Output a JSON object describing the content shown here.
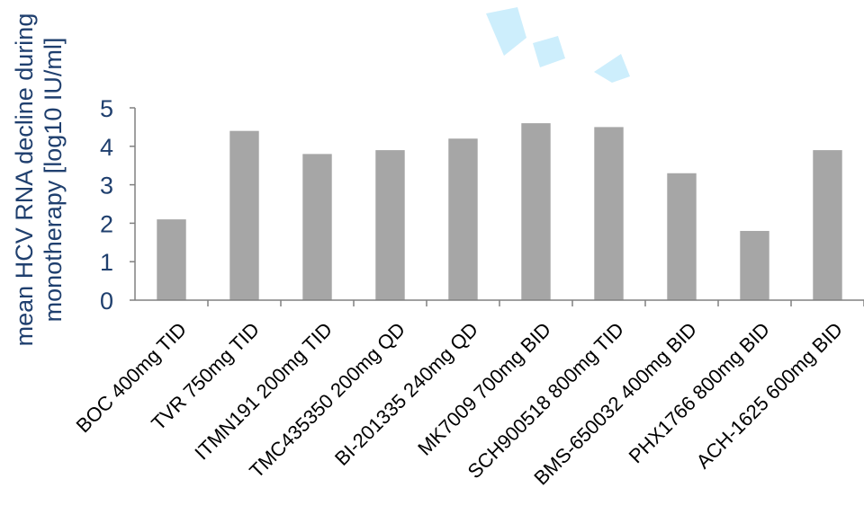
{
  "chart_data": {
    "type": "bar",
    "title": "",
    "xlabel": "",
    "ylabel_lines": [
      "mean HCV RNA decline during",
      "monotherapy [log10 IU/ml]"
    ],
    "ylim": [
      0,
      5
    ],
    "yticks": [
      0,
      1,
      2,
      3,
      4,
      5
    ],
    "categories": [
      "BOC 400mg TID",
      "TVR 750mg TID",
      "ITMN191 200mg TID",
      "TMC435350 200mg QD",
      "BI-201335 240mg QD",
      "MK7009 700mg BID",
      "SCH900518 800mg TID",
      "BMS-650032 400mg BID",
      "PHX1766 800mg BID",
      "ACH-1625 600mg BID"
    ],
    "values": [
      2.1,
      4.4,
      3.8,
      3.9,
      4.2,
      4.6,
      4.5,
      3.3,
      1.8,
      3.9
    ],
    "grid": false,
    "colors": {
      "bar": "#a6a6a6",
      "axis_text": "#1f3f6e",
      "tick_text": "#000000",
      "axis_line": "#808080"
    }
  }
}
